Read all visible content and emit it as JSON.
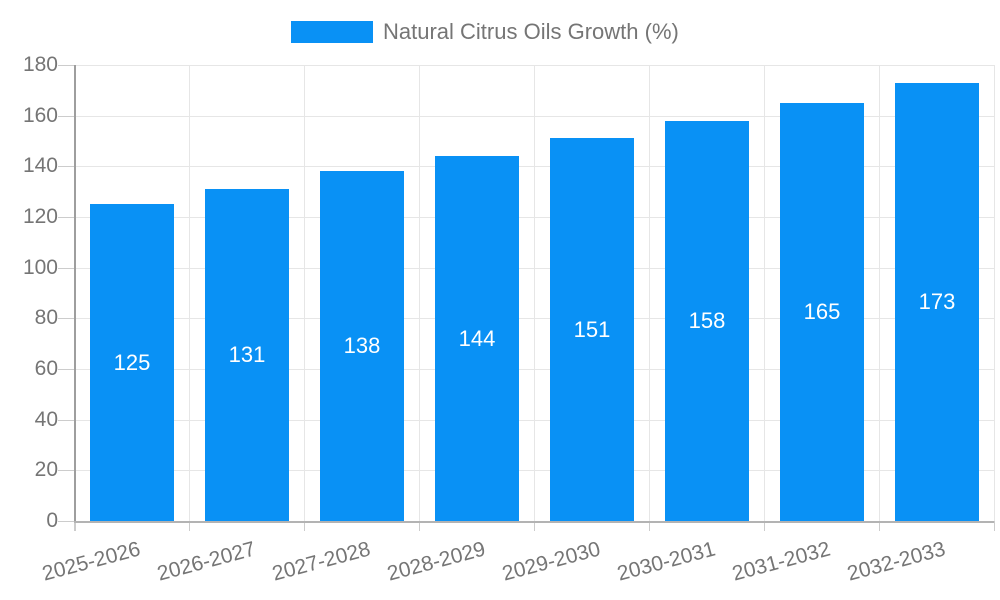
{
  "legend": {
    "label": "Natural Citrus Oils Growth (%)"
  },
  "chart_data": {
    "type": "bar",
    "title": "Natural Citrus Oils Growth (%)",
    "categories": [
      "2025-2026",
      "2026-2027",
      "2027-2028",
      "2028-2029",
      "2029-2030",
      "2030-2031",
      "2031-2032",
      "2032-2033"
    ],
    "values": [
      125,
      131,
      138,
      144,
      151,
      158,
      165,
      173
    ],
    "series": [
      {
        "name": "Natural Citrus Oils Growth (%)",
        "values": [
          125,
          131,
          138,
          144,
          151,
          158,
          165,
          173
        ]
      }
    ],
    "xlabel": "",
    "ylabel": "",
    "ylim": [
      0,
      180
    ],
    "yticks": [
      0,
      20,
      40,
      60,
      80,
      100,
      120,
      140,
      160,
      180
    ],
    "grid": true,
    "legend_position": "top",
    "bar_color": "#0991f5",
    "value_label_color": "#ffffff",
    "axis_text_color": "#757575",
    "gridline_color": "#e6e6e6"
  }
}
